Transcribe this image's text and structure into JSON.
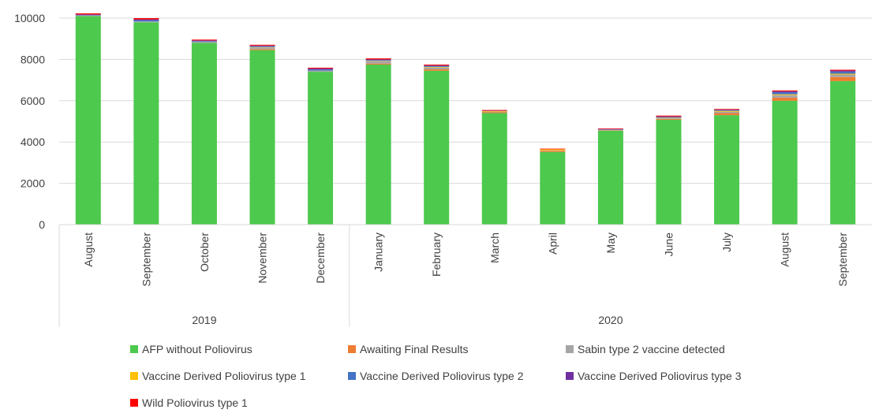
{
  "chart_data": {
    "type": "bar",
    "stacked": true,
    "title": "",
    "xlabel": "",
    "ylabel": "",
    "ylim": [
      0,
      10000
    ],
    "yticks": [
      0,
      2000,
      4000,
      6000,
      8000,
      10000
    ],
    "grid": true,
    "legend_position": "bottom",
    "categories": [
      "August",
      "September",
      "October",
      "November",
      "December",
      "January",
      "February",
      "March",
      "April",
      "May",
      "June",
      "July",
      "August",
      "September"
    ],
    "groups": [
      {
        "label": "2019",
        "count": 5
      },
      {
        "label": "2020",
        "count": 9
      }
    ],
    "series": [
      {
        "name": "AFP without Poliovirus",
        "color": "#4dc94d",
        "values": [
          10100,
          9800,
          8800,
          8450,
          7400,
          7750,
          7450,
          5400,
          3520,
          4550,
          5080,
          5300,
          6000,
          6950
        ]
      },
      {
        "name": "Awaiting Final Results",
        "color": "#ed7d31",
        "values": [
          0,
          0,
          0,
          50,
          0,
          50,
          70,
          40,
          60,
          20,
          40,
          100,
          150,
          200
        ]
      },
      {
        "name": "Sabin type 2 vaccine detected",
        "color": "#a5a5a5",
        "values": [
          30,
          40,
          60,
          80,
          60,
          110,
          90,
          30,
          20,
          20,
          40,
          70,
          120,
          120
        ]
      },
      {
        "name": "Vaccine Derived Poliovirus type 1",
        "color": "#ffc000",
        "values": [
          0,
          0,
          0,
          20,
          0,
          20,
          30,
          30,
          50,
          0,
          20,
          40,
          40,
          40
        ]
      },
      {
        "name": "Vaccine Derived Poliovirus type 2",
        "color": "#4472c4",
        "values": [
          20,
          60,
          30,
          40,
          50,
          40,
          40,
          0,
          0,
          20,
          30,
          30,
          100,
          100
        ]
      },
      {
        "name": "Vaccine Derived Poliovirus type 3",
        "color": "#7030a0",
        "values": [
          30,
          40,
          30,
          30,
          50,
          30,
          30,
          20,
          0,
          20,
          30,
          30,
          50,
          50
        ]
      },
      {
        "name": "Wild Poliovirus type 1",
        "color": "#ff0000",
        "values": [
          50,
          60,
          40,
          40,
          40,
          50,
          40,
          30,
          30,
          30,
          40,
          30,
          40,
          40
        ]
      }
    ]
  }
}
